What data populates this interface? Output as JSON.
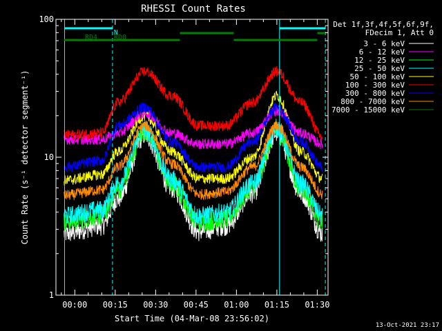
{
  "chart_data": {
    "type": "line",
    "title": "RHESSI Count Rates",
    "xlabel": "Start Time (04-Mar-08 23:56:02)",
    "ylabel": "Count Rate (s⁻¹ detector segment⁻¹)",
    "yscale": "log",
    "ylim": [
      1,
      100
    ],
    "xlim_minutes": [
      -3,
      98
    ],
    "x_ticks": [
      {
        "minutes": 4,
        "label": "00:00"
      },
      {
        "minutes": 19,
        "label": "00:15"
      },
      {
        "minutes": 34,
        "label": "00:30"
      },
      {
        "minutes": 49,
        "label": "00:45"
      },
      {
        "minutes": 64,
        "label": "01:00"
      },
      {
        "minutes": 79,
        "label": "01:15"
      },
      {
        "minutes": 94,
        "label": "01:30"
      }
    ],
    "y_ticks": [
      {
        "value": 1,
        "label": "1"
      },
      {
        "value": 10,
        "label": "10"
      },
      {
        "value": 100,
        "label": "100"
      }
    ],
    "legend_header": [
      "Det 1f,3f,4f,5f,6f,9f,",
      "FDecim 1, Att 0"
    ],
    "legend_position": "right",
    "vertical_markers_minutes": [
      0.2,
      18,
      80,
      97
    ],
    "flags": [
      {
        "label": "N",
        "color": "#00ffff",
        "segments": [
          [
            0.2,
            18
          ],
          [
            80,
            97
          ]
        ]
      },
      {
        "label": "RD0",
        "color": "#008000",
        "segments": [
          [
            43,
            63
          ],
          [
            94,
            97
          ]
        ]
      },
      {
        "label": "RD4",
        "color": "#008000",
        "segments": [
          [
            0,
            18
          ],
          [
            18,
            43
          ],
          [
            63,
            94
          ]
        ]
      }
    ],
    "series": [
      {
        "name": "3 - 6 keV",
        "color": "#ffffff",
        "points": [
          [
            0,
            2.8
          ],
          [
            14,
            3.2
          ],
          [
            20,
            5.0
          ],
          [
            30,
            14.5
          ],
          [
            40,
            6.0
          ],
          [
            50,
            2.9
          ],
          [
            60,
            3.2
          ],
          [
            70,
            5.5
          ],
          [
            79,
            15.0
          ],
          [
            88,
            5.5
          ],
          [
            96,
            2.8
          ]
        ]
      },
      {
        "name": "6 - 12 keV",
        "color": "#ff00ff",
        "points": [
          [
            0,
            13.5
          ],
          [
            14,
            13.5
          ],
          [
            20,
            15.0
          ],
          [
            30,
            21.0
          ],
          [
            40,
            15.0
          ],
          [
            50,
            12.5
          ],
          [
            60,
            12.5
          ],
          [
            70,
            15.0
          ],
          [
            79,
            22.0
          ],
          [
            88,
            15.0
          ],
          [
            96,
            12.5
          ]
        ]
      },
      {
        "name": "12 - 25 keV",
        "color": "#00ff00",
        "points": [
          [
            0,
            3.4
          ],
          [
            14,
            3.8
          ],
          [
            20,
            5.8
          ],
          [
            30,
            15.5
          ],
          [
            40,
            6.5
          ],
          [
            50,
            3.4
          ],
          [
            60,
            3.6
          ],
          [
            70,
            6.0
          ],
          [
            79,
            15.5
          ],
          [
            88,
            6.0
          ],
          [
            96,
            3.4
          ]
        ]
      },
      {
        "name": "25 - 50 keV",
        "color": "#00ffff",
        "points": [
          [
            0,
            3.8
          ],
          [
            14,
            4.2
          ],
          [
            20,
            6.5
          ],
          [
            30,
            16.0
          ],
          [
            40,
            7.0
          ],
          [
            50,
            3.8
          ],
          [
            60,
            4.0
          ],
          [
            70,
            6.5
          ],
          [
            79,
            16.5
          ],
          [
            88,
            6.5
          ],
          [
            96,
            3.8
          ]
        ]
      },
      {
        "name": "50 - 100 keV",
        "color": "#ffff00",
        "points": [
          [
            0,
            6.8
          ],
          [
            14,
            7.5
          ],
          [
            20,
            11.0
          ],
          [
            30,
            20.0
          ],
          [
            40,
            11.0
          ],
          [
            50,
            7.0
          ],
          [
            60,
            7.0
          ],
          [
            70,
            10.0
          ],
          [
            79,
            28.0
          ],
          [
            88,
            11.0
          ],
          [
            96,
            7.0
          ]
        ]
      },
      {
        "name": "100 - 300 keV",
        "color": "#ff0000",
        "points": [
          [
            0,
            14.5
          ],
          [
            14,
            15.0
          ],
          [
            20,
            25.0
          ],
          [
            30,
            42.0
          ],
          [
            40,
            28.0
          ],
          [
            50,
            17.0
          ],
          [
            60,
            17.0
          ],
          [
            70,
            25.0
          ],
          [
            79,
            42.0
          ],
          [
            88,
            25.0
          ],
          [
            96,
            14.0
          ]
        ]
      },
      {
        "name": "300 - 800 keV",
        "color": "#0000ff",
        "points": [
          [
            0,
            8.5
          ],
          [
            14,
            9.5
          ],
          [
            20,
            17.0
          ],
          [
            30,
            23.0
          ],
          [
            40,
            13.0
          ],
          [
            50,
            8.5
          ],
          [
            60,
            8.5
          ],
          [
            70,
            13.0
          ],
          [
            79,
            23.0
          ],
          [
            88,
            13.0
          ],
          [
            96,
            8.5
          ]
        ]
      },
      {
        "name": "800 - 7000 keV",
        "color": "#ff8c00",
        "points": [
          [
            0,
            5.3
          ],
          [
            14,
            5.8
          ],
          [
            20,
            8.5
          ],
          [
            30,
            17.0
          ],
          [
            40,
            9.0
          ],
          [
            50,
            5.4
          ],
          [
            60,
            5.6
          ],
          [
            70,
            8.5
          ],
          [
            79,
            17.0
          ],
          [
            88,
            8.5
          ],
          [
            96,
            5.4
          ]
        ]
      },
      {
        "name": "7000 - 15000 keV",
        "color": "#008000",
        "points": []
      }
    ]
  },
  "timestamp": "13-Oct-2021 23:17"
}
